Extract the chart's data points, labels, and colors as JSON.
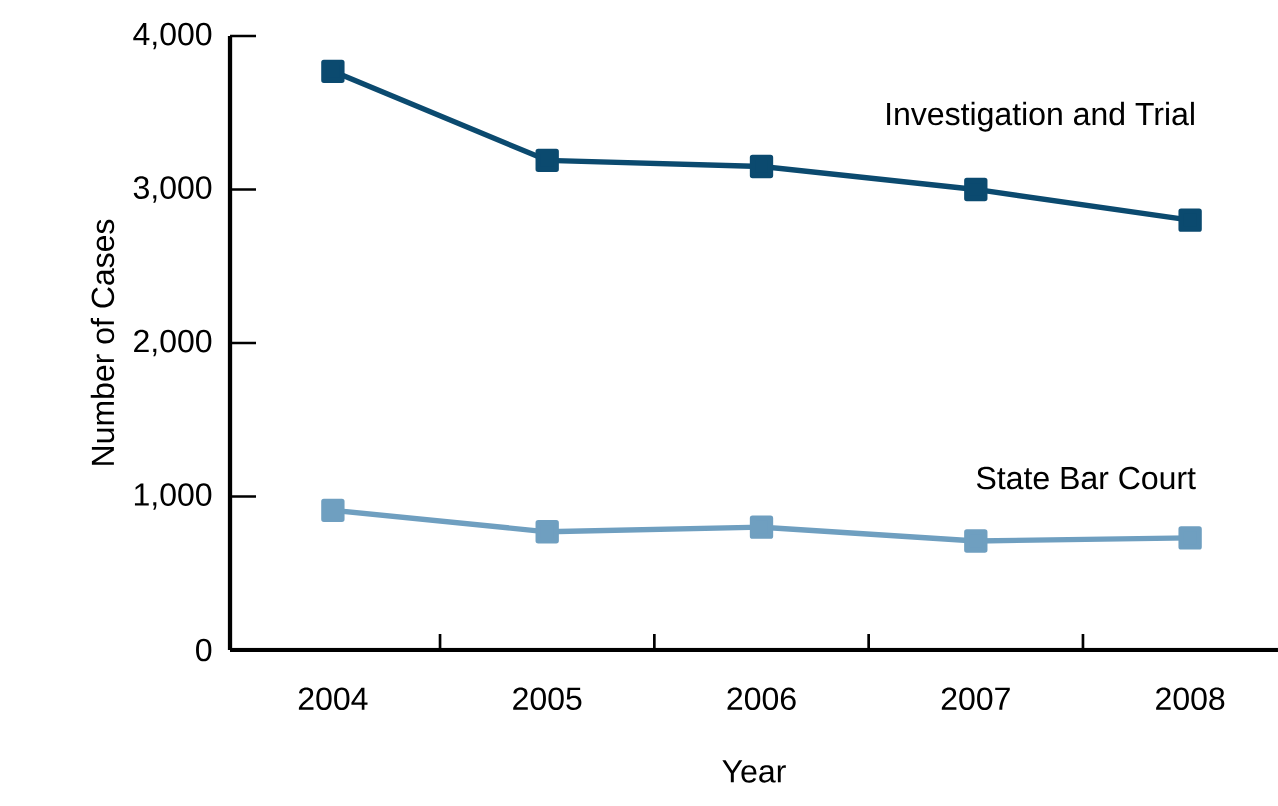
{
  "chart_data": {
    "type": "line",
    "xlabel": "Year",
    "ylabel": "Number of Cases",
    "categories": [
      "2004",
      "2005",
      "2006",
      "2007",
      "2008"
    ],
    "series": [
      {
        "name": "Investigation and Trial",
        "color": "#0b4a6f",
        "values": [
          3770,
          3190,
          3150,
          3000,
          2800
        ]
      },
      {
        "name": "State Bar Court",
        "color": "#6f9fc0",
        "values": [
          910,
          770,
          800,
          710,
          730
        ]
      }
    ],
    "ylim": [
      0,
      4000
    ],
    "yticks": [
      {
        "value": 0,
        "label": "0"
      },
      {
        "value": 1000,
        "label": "1,000"
      },
      {
        "value": 2000,
        "label": "2,000"
      },
      {
        "value": 3000,
        "label": "3,000"
      },
      {
        "value": 4000,
        "label": "4,000"
      }
    ],
    "marker": "square",
    "line_style": "solid",
    "grid": false,
    "legend": false
  }
}
